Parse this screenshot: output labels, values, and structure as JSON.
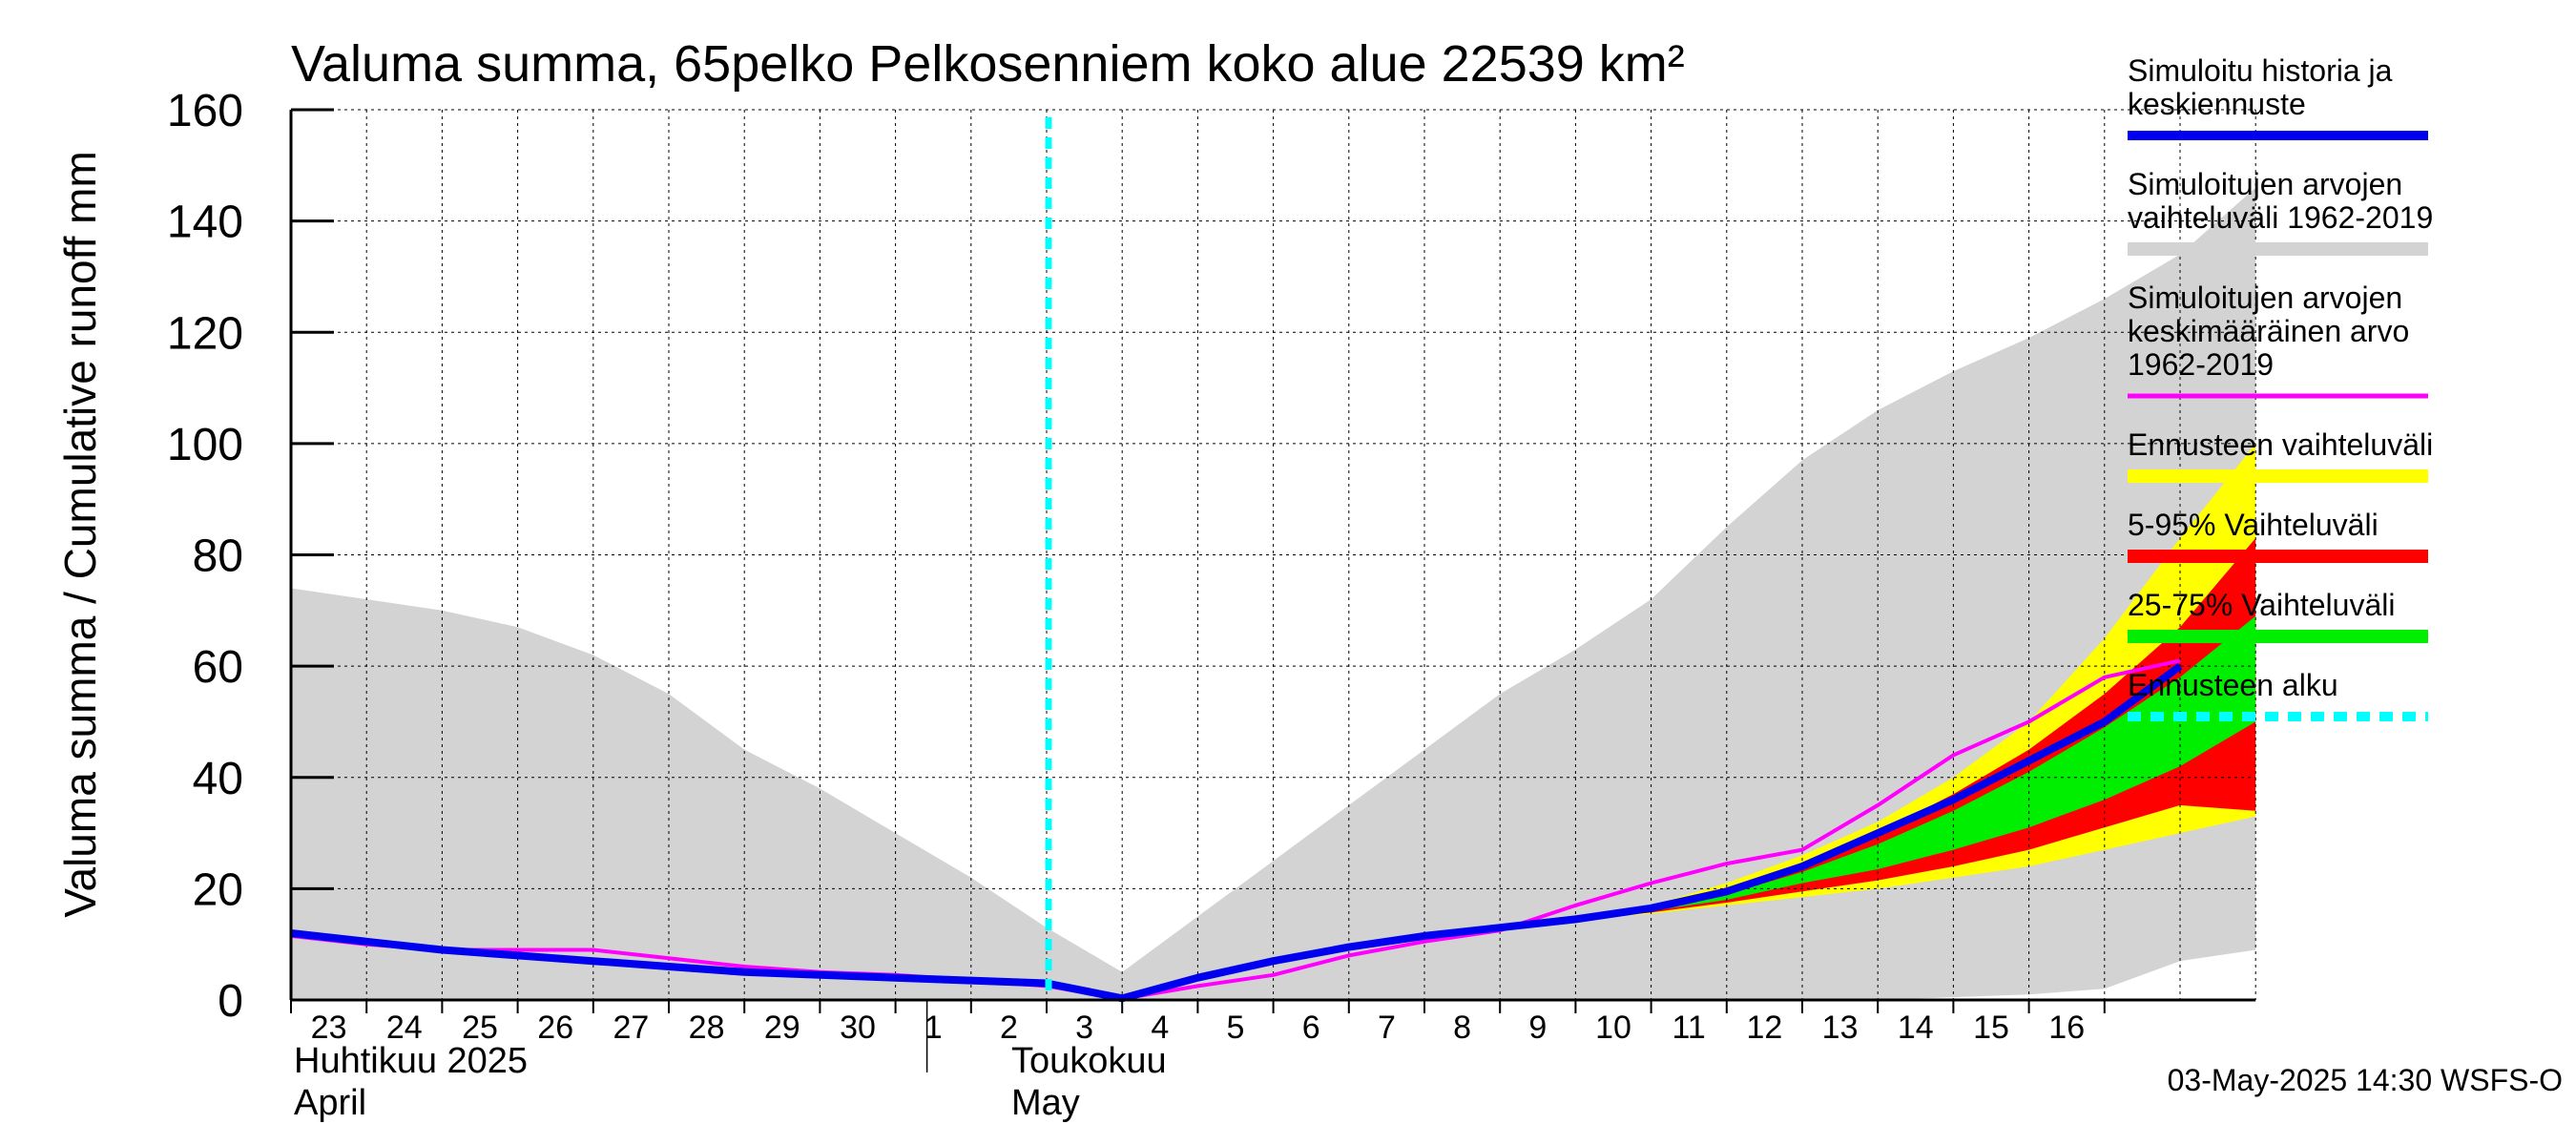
{
  "chart_data": {
    "type": "area",
    "title": "Valuma summa, 65pelko Pelkosenniem koko alue 22539 km²",
    "ylabel": "Valuma summa / Cumulative runoff    mm",
    "ylim": [
      0,
      160
    ],
    "yticks": [
      0,
      20,
      40,
      60,
      80,
      100,
      120,
      140,
      160
    ],
    "grid": true,
    "legend_position": "right",
    "x_day_labels": [
      "23",
      "24",
      "25",
      "26",
      "27",
      "28",
      "29",
      "30",
      "1",
      "2",
      "3",
      "4",
      "5",
      "6",
      "7",
      "8",
      "9",
      "10",
      "11",
      "12",
      "13",
      "14",
      "15",
      "16"
    ],
    "month_labels": [
      {
        "line1": "Huhtikuu  2025",
        "line2": "April"
      },
      {
        "line1": "Toukokuu",
        "line2": "May"
      }
    ],
    "forecast_start_index": 10,
    "footer": "03-May-2025 14:30 WSFS-O",
    "series": [
      {
        "name": "Simuloitujen arvojen vaihteluväli 1962-2019",
        "kind": "band",
        "color": "#d3d3d3",
        "upper": [
          74,
          72,
          70,
          67,
          62,
          55,
          45,
          38,
          30,
          22,
          13,
          5,
          15,
          25,
          35,
          45,
          55,
          63,
          72,
          85,
          97,
          106,
          113,
          119,
          126,
          134,
          146
        ],
        "lower": [
          0,
          0,
          0,
          0,
          0,
          0,
          0,
          0,
          0,
          0,
          0,
          0,
          0,
          0,
          0,
          0,
          0,
          0,
          0,
          0,
          0,
          0,
          0.5,
          1,
          2,
          7,
          9
        ]
      },
      {
        "name": "Ennusteen vaihteluväli",
        "kind": "band",
        "color": "#ffff00",
        "start_index": 17,
        "upper": [
          14.5,
          17,
          21,
          26,
          32,
          40,
          50,
          65,
          83,
          100
        ],
        "lower": [
          14.5,
          15.5,
          17,
          18.5,
          20,
          22,
          24,
          27,
          30,
          33
        ]
      },
      {
        "name": "5-95% Vaihteluväli",
        "kind": "band",
        "color": "#ff0000",
        "start_index": 17,
        "upper": [
          14.5,
          16.5,
          20,
          24,
          30,
          37,
          45,
          55,
          67,
          83
        ],
        "lower": [
          14.5,
          15.7,
          17.5,
          19.5,
          21.5,
          24,
          27,
          31,
          35,
          34
        ]
      },
      {
        "name": "25-75% Vaihteluväli",
        "kind": "band",
        "color": "#00ee00",
        "start_index": 17,
        "upper": [
          14.5,
          16.5,
          19,
          23,
          28,
          34,
          41,
          49,
          58,
          69
        ],
        "lower": [
          14.5,
          16,
          18,
          21,
          23.5,
          27,
          31,
          36,
          42,
          50
        ]
      },
      {
        "name": "Simuloitujen arvojen keskimääräinen arvo 1962-2019",
        "kind": "line",
        "color": "#ff00ff",
        "width": 4,
        "values": [
          11.5,
          10,
          9,
          9,
          9,
          7.5,
          6,
          5,
          4.5,
          3.5,
          2.5,
          0.2,
          2.5,
          4.5,
          8,
          10.5,
          12.5,
          17,
          21,
          24.5,
          27,
          35,
          44,
          50,
          58,
          61
        ]
      },
      {
        "name": "Simuloitu historia ja keskiennuste",
        "kind": "line",
        "color": "#0000ee",
        "width": 8,
        "values": [
          12,
          10.5,
          9,
          8,
          7,
          6,
          5,
          4.5,
          4,
          3.5,
          3,
          0.3,
          4,
          7,
          9.5,
          11.5,
          13,
          14.5,
          16.5,
          19.5,
          24,
          30,
          36,
          43,
          50,
          60
        ]
      },
      {
        "name": "Ennusteen alku",
        "kind": "vline",
        "color": "#00ffff",
        "x_index": 10
      }
    ]
  },
  "legend": [
    {
      "label_lines": [
        "Simuloitu historia ja",
        "keskiennuste"
      ],
      "color": "#0000ee",
      "style": "solid",
      "width": 10
    },
    {
      "label_lines": [
        "Simuloitujen arvojen",
        "vaihteluväli 1962-2019"
      ],
      "color": "#d3d3d3",
      "style": "solid",
      "width": 14
    },
    {
      "label_lines": [
        "Simuloitujen arvojen",
        "keskimääräinen arvo",
        "   1962-2019"
      ],
      "color": "#ff00ff",
      "style": "solid",
      "width": 5
    },
    {
      "label_lines": [
        "Ennusteen vaihteluväli"
      ],
      "color": "#ffff00",
      "style": "solid",
      "width": 14
    },
    {
      "label_lines": [
        "5-95% Vaihteluväli"
      ],
      "color": "#ff0000",
      "style": "solid",
      "width": 14
    },
    {
      "label_lines": [
        "25-75% Vaihteluväli"
      ],
      "color": "#00ee00",
      "style": "solid",
      "width": 14
    },
    {
      "label_lines": [
        "Ennusteen alku"
      ],
      "color": "#00ffff",
      "style": "dashed",
      "width": 10
    }
  ]
}
